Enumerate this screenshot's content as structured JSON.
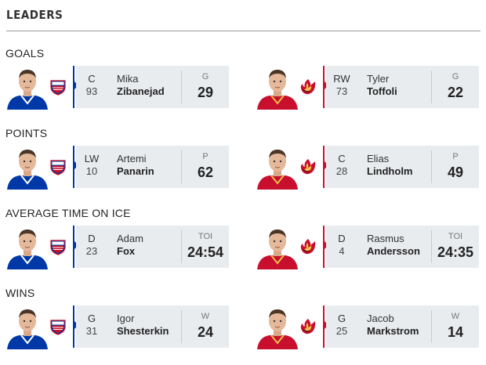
{
  "header": {
    "title": "LEADERS"
  },
  "colors": {
    "nyr": "#0038a8",
    "nyr_red": "#ce1126",
    "cgy": "#c8102e",
    "cgy_gold": "#f1be48",
    "panel": "#e9ecef"
  },
  "sections": [
    {
      "category": "GOALS",
      "left": {
        "team_logo": "rangers-logo",
        "position": "C",
        "number": "93",
        "first_name": "Mika",
        "last_name": "Zibanejad",
        "stat_label": "G",
        "stat_value": "29"
      },
      "right": {
        "team_logo": "flames-logo",
        "position": "RW",
        "number": "73",
        "first_name": "Tyler",
        "last_name": "Toffoli",
        "stat_label": "G",
        "stat_value": "22"
      }
    },
    {
      "category": "POINTS",
      "left": {
        "team_logo": "rangers-logo",
        "position": "LW",
        "number": "10",
        "first_name": "Artemi",
        "last_name": "Panarin",
        "stat_label": "P",
        "stat_value": "62"
      },
      "right": {
        "team_logo": "flames-logo",
        "position": "C",
        "number": "28",
        "first_name": "Elias",
        "last_name": "Lindholm",
        "stat_label": "P",
        "stat_value": "49"
      }
    },
    {
      "category": "AVERAGE TIME ON ICE",
      "left": {
        "team_logo": "rangers-logo",
        "position": "D",
        "number": "23",
        "first_name": "Adam",
        "last_name": "Fox",
        "stat_label": "TOI",
        "stat_value": "24:54"
      },
      "right": {
        "team_logo": "flames-logo",
        "position": "D",
        "number": "4",
        "first_name": "Rasmus",
        "last_name": "Andersson",
        "stat_label": "TOI",
        "stat_value": "24:35"
      }
    },
    {
      "category": "WINS",
      "left": {
        "team_logo": "rangers-logo",
        "position": "G",
        "number": "31",
        "first_name": "Igor",
        "last_name": "Shesterkin",
        "stat_label": "W",
        "stat_value": "24"
      },
      "right": {
        "team_logo": "flames-logo",
        "position": "G",
        "number": "25",
        "first_name": "Jacob",
        "last_name": "Markstrom",
        "stat_label": "W",
        "stat_value": "14"
      }
    }
  ]
}
